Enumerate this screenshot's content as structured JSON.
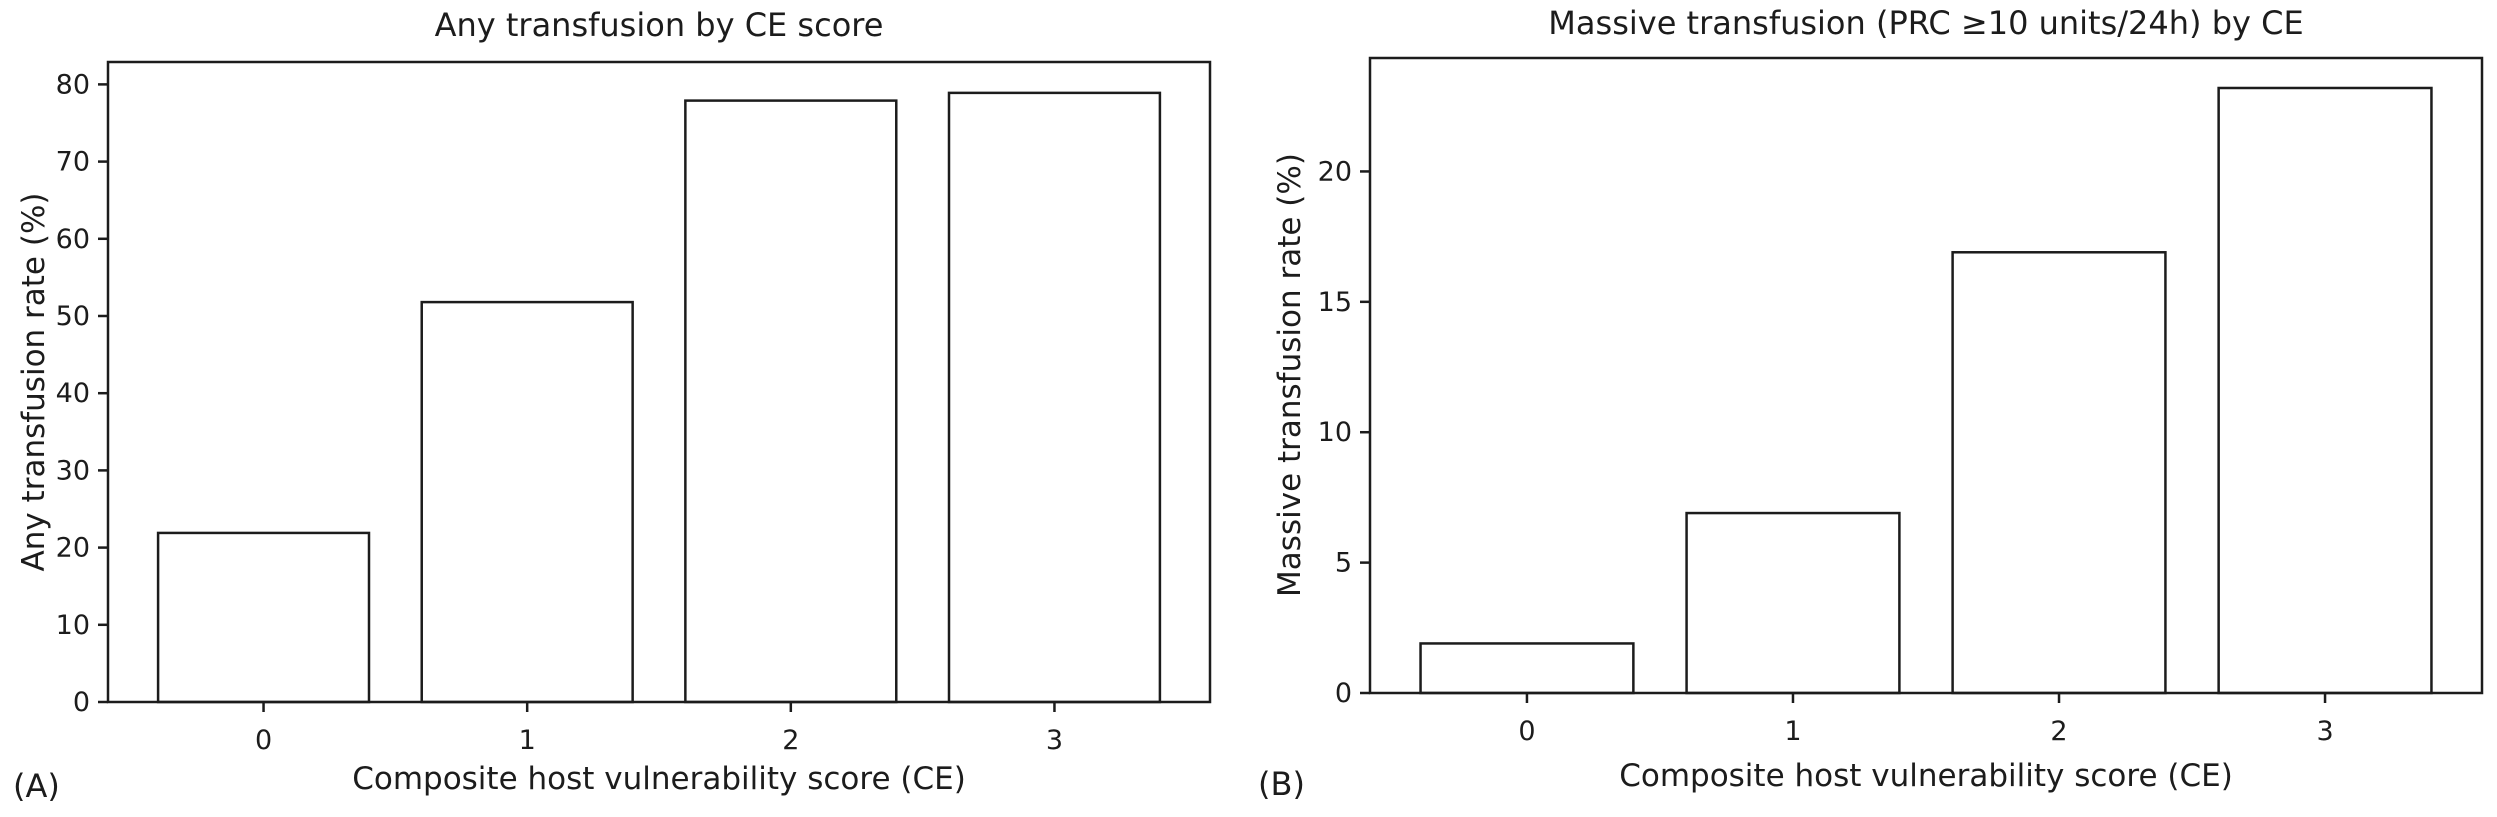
{
  "figure": {
    "background": "#ffffff",
    "text_color": "#1c1c1c",
    "axis_color": "#1c1c1c"
  },
  "chart_data": [
    {
      "type": "bar",
      "panel_label": "(A)",
      "title": "Any transfusion by CE score",
      "xlabel": "Composite host vulnerability score (CE)",
      "ylabel": "Any transfusion rate (%)",
      "categories": [
        "0",
        "1",
        "2",
        "3"
      ],
      "values": [
        21.9,
        51.8,
        77.9,
        78.9
      ],
      "yticks": [
        0,
        10,
        20,
        30,
        40,
        50,
        60,
        70,
        80
      ],
      "ylim": [
        0,
        82.9
      ],
      "bar_fill": "#ffffff",
      "bar_edge": "#1c1c1c",
      "grid": false,
      "legend_position": "none"
    },
    {
      "type": "bar",
      "panel_label": "(B)",
      "title": "Massive transfusion (PRC ≥10 units/24h) by CE",
      "xlabel": "Composite host vulnerability score (CE)",
      "ylabel": "Massive transfusion rate (%)",
      "categories": [
        "0",
        "1",
        "2",
        "3"
      ],
      "values": [
        1.9,
        6.9,
        16.9,
        23.2
      ],
      "yticks": [
        0,
        5,
        10,
        15,
        20
      ],
      "ylim": [
        0,
        24.35
      ],
      "bar_fill": "#ffffff",
      "bar_edge": "#1c1c1c",
      "grid": false,
      "legend_position": "none"
    }
  ]
}
